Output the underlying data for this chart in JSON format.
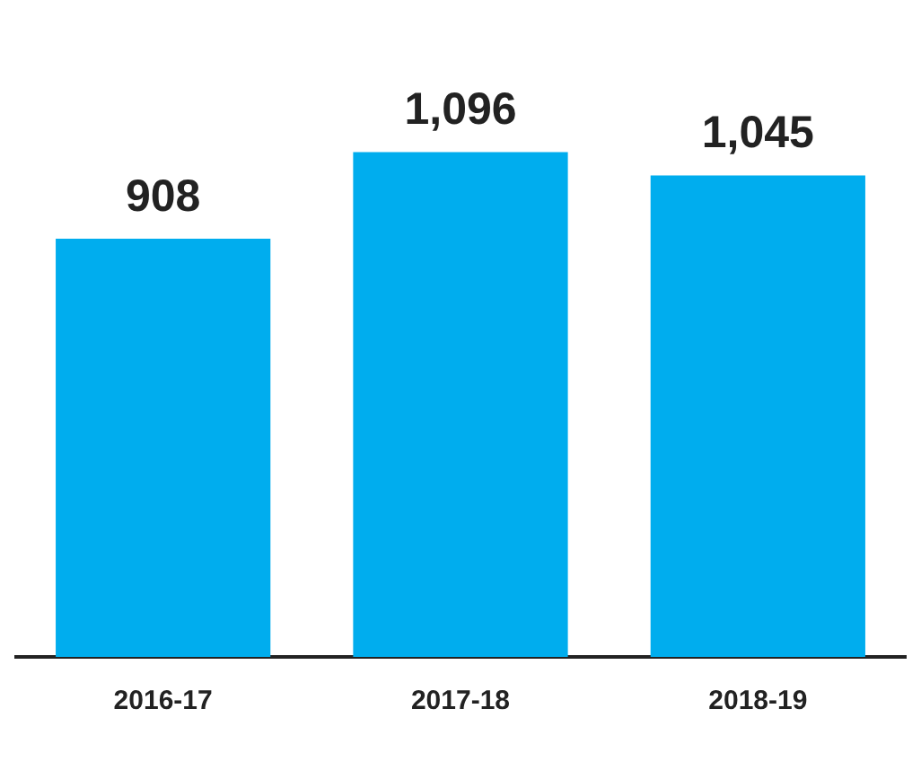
{
  "chart_data": {
    "type": "bar",
    "categories": [
      "2016-17",
      "2017-18",
      "2018-19"
    ],
    "values": [
      908,
      1096,
      1045
    ],
    "value_labels": [
      "908",
      "1,096",
      "1,045"
    ],
    "color": "#00adee",
    "grid": false,
    "legend": false
  }
}
